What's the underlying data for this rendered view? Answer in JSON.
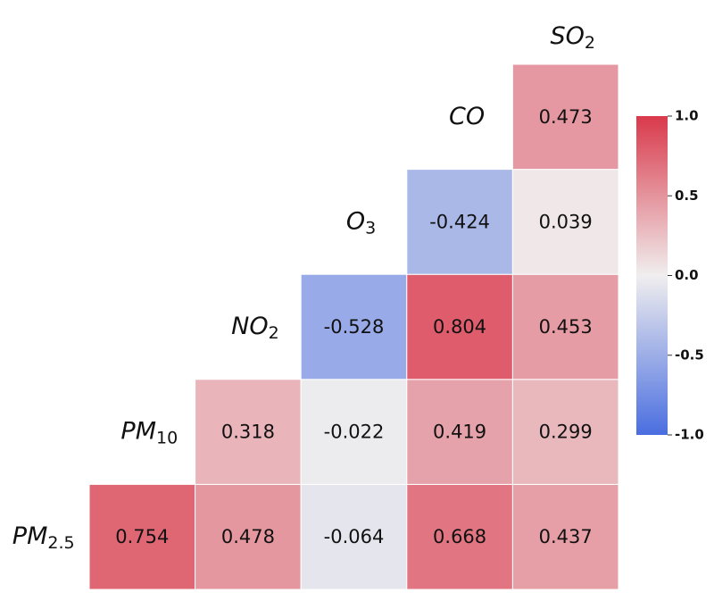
{
  "chart_data": {
    "type": "heatmap",
    "variables": [
      {
        "main": "PM",
        "sub": "2.5"
      },
      {
        "main": "PM",
        "sub": "10"
      },
      {
        "main": "NO",
        "sub": "2"
      },
      {
        "main": "O",
        "sub": "3"
      },
      {
        "main": "CO"
      },
      {
        "main": "SO",
        "sub": "2"
      }
    ],
    "values": [
      [
        0.754,
        0.478,
        -0.064,
        0.668,
        0.437
      ],
      [
        0.318,
        -0.022,
        0.419,
        0.299
      ],
      [
        -0.528,
        0.804,
        0.453
      ],
      [
        -0.424,
        0.039
      ],
      [
        0.473
      ]
    ],
    "zlim": [
      -1,
      1
    ],
    "colormap": [
      "#4a6ee0",
      "#f0eeee",
      "#d9394b"
    ],
    "zticks": [
      {
        "value": 1,
        "label": "1.0"
      },
      {
        "value": 0.5,
        "label": "0.5"
      },
      {
        "value": 0,
        "label": "0.0"
      },
      {
        "value": -0.5,
        "label": "-0.5"
      },
      {
        "value": -1,
        "label": "-1.0"
      }
    ]
  }
}
